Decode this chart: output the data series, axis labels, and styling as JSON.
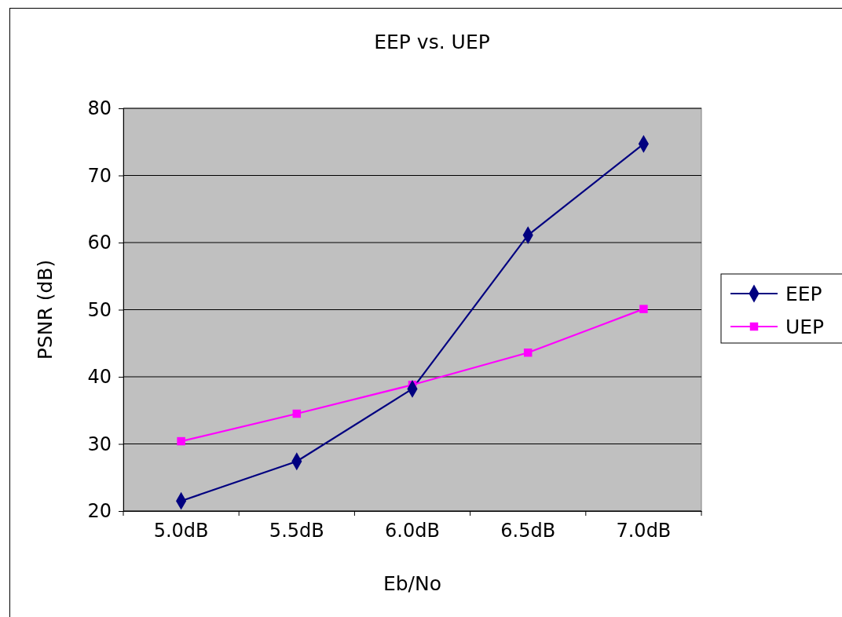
{
  "chart_data": {
    "type": "line",
    "title": "EEP vs. UEP",
    "xlabel": "Eb/No",
    "ylabel": "PSNR (dB)",
    "categories": [
      "5.0dB",
      "5.5dB",
      "6.0dB",
      "6.5dB",
      "7.0dB"
    ],
    "series": [
      {
        "name": "EEP",
        "color": "#000080",
        "marker": "diamond",
        "values": [
          21.5,
          27.4,
          38.2,
          61.1,
          74.7
        ]
      },
      {
        "name": "UEP",
        "color": "#ff00ff",
        "marker": "square",
        "values": [
          30.4,
          34.5,
          38.8,
          43.6,
          50.1
        ]
      }
    ],
    "ylim": [
      20,
      80
    ],
    "yticks": [
      20,
      30,
      40,
      50,
      60,
      70,
      80
    ],
    "grid": "y",
    "legend": "right",
    "line_style": "solid"
  }
}
